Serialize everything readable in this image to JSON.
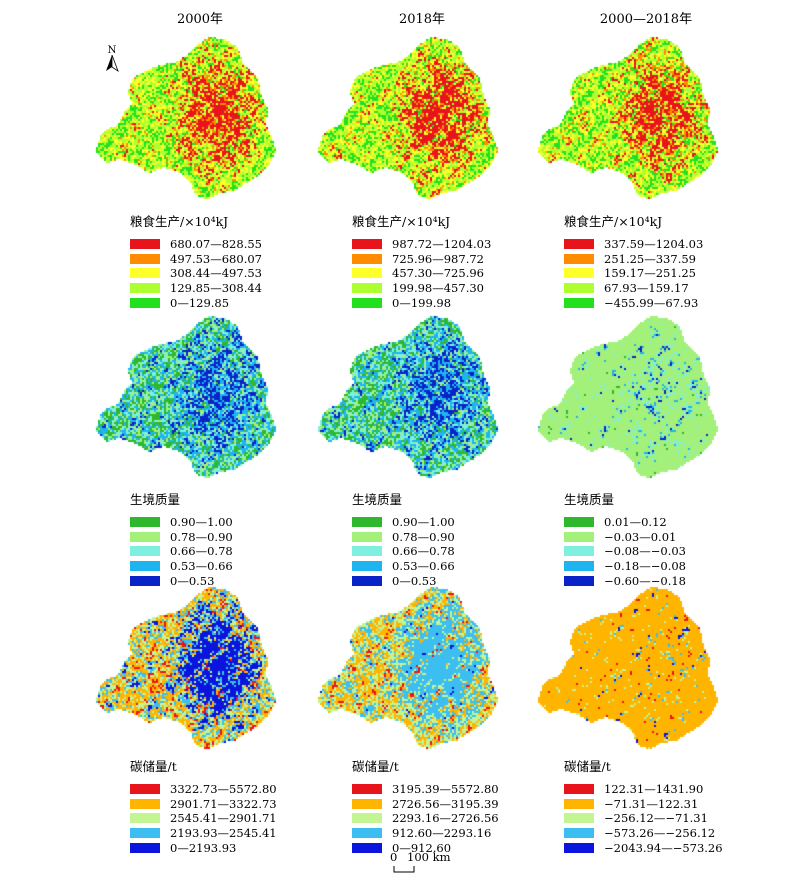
{
  "titles": [
    "2000年",
    "2018年",
    "2000—2018年"
  ],
  "north_label": "N",
  "scale": {
    "zero": "0",
    "distance": "100 km"
  },
  "rows": [
    {
      "key": "grain",
      "panels": [
        {
          "legend_title": "粮食生产/×10⁴kJ",
          "classes": [
            {
              "label": "680.07—828.55",
              "color": "#e8141c"
            },
            {
              "label": "497.53—680.07",
              "color": "#ff8c00"
            },
            {
              "label": "308.44—497.53",
              "color": "#ffff2a"
            },
            {
              "label": "129.85—308.44",
              "color": "#adff2f"
            },
            {
              "label": "0—129.85",
              "color": "#22e01e"
            }
          ]
        },
        {
          "legend_title": "粮食生产/×10⁴kJ",
          "classes": [
            {
              "label": "987.72—1204.03",
              "color": "#e8141c"
            },
            {
              "label": "725.96—987.72",
              "color": "#ff8c00"
            },
            {
              "label": "457.30—725.96",
              "color": "#ffff2a"
            },
            {
              "label": "199.98—457.30",
              "color": "#adff2f"
            },
            {
              "label": "0—199.98",
              "color": "#22e01e"
            }
          ]
        },
        {
          "legend_title": "粮食生产/×10⁴kJ",
          "classes": [
            {
              "label": "337.59—1204.03",
              "color": "#e8141c"
            },
            {
              "label": "251.25—337.59",
              "color": "#ff8c00"
            },
            {
              "label": "159.17—251.25",
              "color": "#ffff2a"
            },
            {
              "label": "67.93—159.17",
              "color": "#adff2f"
            },
            {
              "label": "−455.99—67.93",
              "color": "#22e01e"
            }
          ]
        }
      ]
    },
    {
      "key": "habitat",
      "panels": [
        {
          "legend_title": "生境质量",
          "classes": [
            {
              "label": "0.90—1.00",
              "color": "#2eb82e"
            },
            {
              "label": "0.78—0.90",
              "color": "#a3f07a"
            },
            {
              "label": "0.66—0.78",
              "color": "#7ff0e0"
            },
            {
              "label": "0.53—0.66",
              "color": "#1eb4f0"
            },
            {
              "label": "0—0.53",
              "color": "#0a23c8"
            }
          ]
        },
        {
          "legend_title": "生境质量",
          "classes": [
            {
              "label": "0.90—1.00",
              "color": "#2eb82e"
            },
            {
              "label": "0.78—0.90",
              "color": "#a3f07a"
            },
            {
              "label": "0.66—0.78",
              "color": "#7ff0e0"
            },
            {
              "label": "0.53—0.66",
              "color": "#1eb4f0"
            },
            {
              "label": "0—0.53",
              "color": "#0a23c8"
            }
          ]
        },
        {
          "legend_title": "生境质量",
          "classes": [
            {
              "label": "0.01—0.12",
              "color": "#2eb82e"
            },
            {
              "label": "−0.03—0.01",
              "color": "#a3f07a"
            },
            {
              "label": "−0.08—−0.03",
              "color": "#7ff0e0"
            },
            {
              "label": "−0.18—−0.08",
              "color": "#1eb4f0"
            },
            {
              "label": "−0.60—−0.18",
              "color": "#0a23c8"
            }
          ]
        }
      ]
    },
    {
      "key": "carbon",
      "panels": [
        {
          "legend_title": "碳储量/t",
          "classes": [
            {
              "label": "3322.73—5572.80",
              "color": "#e8141c"
            },
            {
              "label": "2901.71—3322.73",
              "color": "#ffb400"
            },
            {
              "label": "2545.41—2901.71",
              "color": "#c3f592"
            },
            {
              "label": "2193.93—2545.41",
              "color": "#3cbef0"
            },
            {
              "label": "0—2193.93",
              "color": "#0a14dc"
            }
          ]
        },
        {
          "legend_title": "碳储量/t",
          "classes": [
            {
              "label": "3195.39—5572.80",
              "color": "#e8141c"
            },
            {
              "label": "2726.56—3195.39",
              "color": "#ffb400"
            },
            {
              "label": "2293.16—2726.56",
              "color": "#c3f592"
            },
            {
              "label": "912.60—2293.16",
              "color": "#3cbef0"
            },
            {
              "label": "0—912.60",
              "color": "#0a14dc"
            }
          ]
        },
        {
          "legend_title": "碳储量/t",
          "classes": [
            {
              "label": "122.31—1431.90",
              "color": "#e8141c"
            },
            {
              "label": "−71.31—122.31",
              "color": "#ffb400"
            },
            {
              "label": "−256.12—−71.31",
              "color": "#c3f592"
            },
            {
              "label": "−573.26—−256.12",
              "color": "#3cbef0"
            },
            {
              "label": "−2043.94—−573.26",
              "color": "#0a14dc"
            }
          ]
        }
      ]
    }
  ]
}
